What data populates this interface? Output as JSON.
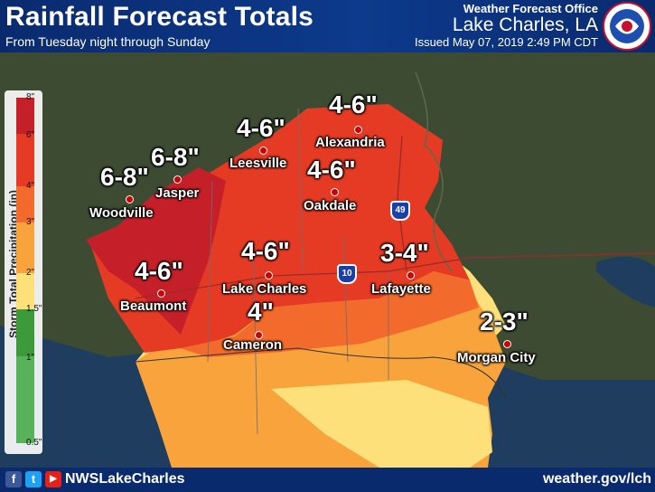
{
  "header": {
    "title": "Rainfall Forecast Totals",
    "subtitle": "From Tuesday night through Sunday",
    "office": "Weather Forecast Office",
    "city": "Lake Charles, LA",
    "issued": "Issued May 07, 2019 2:49 PM CDT",
    "logo_text": "NATIONAL WEATHER SERVICE"
  },
  "legend": {
    "title": "Storm Total Precipitation (in)",
    "ticks": [
      "8\"",
      "6\"",
      "4\"",
      "3\"",
      "2\"",
      "1.5\"",
      "1\"",
      "0.5\""
    ],
    "colors": [
      "#c5202a",
      "#e53b25",
      "#f26a2c",
      "#f8a33c",
      "#fde07a",
      "#f4f06e",
      "#3c9a3a",
      "#58b25a"
    ]
  },
  "locations": [
    {
      "name": "Alexandria",
      "amount": "4-6\""
    },
    {
      "name": "Leesville",
      "amount": "4-6\""
    },
    {
      "name": "Oakdale",
      "amount": "4-6\""
    },
    {
      "name": "Jasper",
      "amount": "6-8\""
    },
    {
      "name": "Woodville",
      "amount": "6-8\""
    },
    {
      "name": "Beaumont",
      "amount": "4-6\""
    },
    {
      "name": "Lake Charles",
      "amount": "4-6\""
    },
    {
      "name": "Lafayette",
      "amount": "3-4\""
    },
    {
      "name": "Cameron",
      "amount": "4\""
    },
    {
      "name": "Morgan City",
      "amount": "2-3\""
    }
  ],
  "highways": [
    "49",
    "10"
  ],
  "footer": {
    "facebook": "f",
    "twitter": "t",
    "youtube": "▶",
    "handle": "NWSLakeCharles",
    "website": "weather.gov/lch"
  },
  "colors": {
    "header_bg": "#0a2a6e",
    "rain_8": "#c5202a",
    "rain_6": "#e53b25",
    "rain_4": "#f26a2c",
    "rain_3": "#f8a33c",
    "rain_2": "#fde07a",
    "gulf": "#1f3d5e"
  }
}
